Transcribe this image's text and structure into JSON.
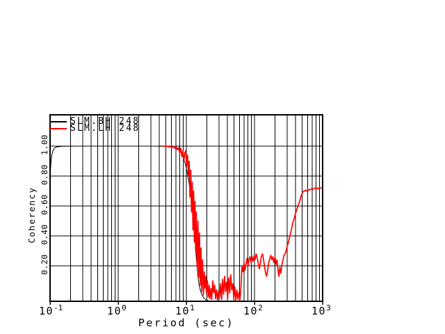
{
  "window": {
    "background": "#ffffff"
  },
  "chart_data": {
    "type": "line",
    "title": "",
    "xlabel": "Period (sec)",
    "ylabel": "Coherency",
    "x_scale": "log",
    "x_range": [
      0.1,
      1000
    ],
    "y_range": [
      0,
      1.0
    ],
    "grid": {
      "color": "#000000",
      "x_minor_divisions": [
        2,
        3,
        4,
        5,
        6,
        7,
        8,
        9
      ],
      "horizontal_at_y_ticks": true
    },
    "legend_position": "top-left-inside",
    "x_ticks": [
      {
        "base": "10",
        "exp": "-1"
      },
      {
        "base": "10",
        "exp": "0"
      },
      {
        "base": "10",
        "exp": "1"
      },
      {
        "base": "10",
        "exp": "2"
      },
      {
        "base": "10",
        "exp": "3"
      }
    ],
    "y_ticks": [
      {
        "value": 1.0,
        "label": "1.00"
      },
      {
        "value": 0.8,
        "label": "0.80"
      },
      {
        "value": 0.6,
        "label": "0.60"
      },
      {
        "value": 0.4,
        "label": "0.40"
      },
      {
        "value": 0.2,
        "label": "0.20"
      }
    ],
    "series": [
      {
        "name": "SLM.BH 248",
        "color": "#000000",
        "line_width": 1,
        "points": [
          [
            0.1,
            0.76
          ],
          [
            0.101,
            0.83
          ],
          [
            0.103,
            0.89
          ],
          [
            0.106,
            0.94
          ],
          [
            0.11,
            0.968
          ],
          [
            0.115,
            0.985
          ],
          [
            0.125,
            0.995
          ],
          [
            0.15,
            0.999
          ],
          [
            0.25,
            1.0
          ],
          [
            0.5,
            1.0
          ],
          [
            1.0,
            1.0
          ],
          [
            2.0,
            1.0
          ],
          [
            3.5,
            1.0
          ],
          [
            4.5,
            0.999
          ],
          [
            5.5,
            0.997
          ],
          [
            6.5,
            0.992
          ],
          [
            7.2,
            0.986
          ],
          [
            7.8,
            0.975
          ],
          [
            8.4,
            0.955
          ],
          [
            9.0,
            0.925
          ],
          [
            9.6,
            0.885
          ],
          [
            10.2,
            0.835
          ],
          [
            10.9,
            0.76
          ],
          [
            11.6,
            0.67
          ],
          [
            12.3,
            0.57
          ],
          [
            13.0,
            0.45
          ],
          [
            13.6,
            0.33
          ],
          [
            14.2,
            0.22
          ],
          [
            14.8,
            0.13
          ],
          [
            15.4,
            0.07
          ],
          [
            16.2,
            0.03
          ],
          [
            17.0,
            0.005
          ],
          [
            18.0,
            -0.015
          ],
          [
            19.5,
            -0.028
          ],
          [
            21.0,
            -0.034
          ],
          [
            24.0,
            -0.037
          ],
          [
            26.0,
            -0.037
          ]
        ]
      },
      {
        "name": "SLM.LH 248",
        "color": "#ff0000",
        "line_width": 1.7,
        "points": [
          [
            4.5,
            0.997
          ],
          [
            4.75,
            1.0
          ],
          [
            5.0,
            0.996
          ],
          [
            5.3,
            1.0
          ],
          [
            5.6,
            0.995
          ],
          [
            5.9,
            0.999
          ],
          [
            6.2,
            0.992
          ],
          [
            6.5,
            0.998
          ],
          [
            6.8,
            0.985
          ],
          [
            7.1,
            0.995
          ],
          [
            7.4,
            0.975
          ],
          [
            7.7,
            0.99
          ],
          [
            8.0,
            0.955
          ],
          [
            8.3,
            0.985
          ],
          [
            8.6,
            0.93
          ],
          [
            8.9,
            0.97
          ],
          [
            9.2,
            0.9
          ],
          [
            9.5,
            0.955
          ],
          [
            9.8,
            0.97
          ],
          [
            10.1,
            0.87
          ],
          [
            10.4,
            0.94
          ],
          [
            10.7,
            0.8
          ],
          [
            11.0,
            0.9
          ],
          [
            11.3,
            0.66
          ],
          [
            11.6,
            0.84
          ],
          [
            11.9,
            0.56
          ],
          [
            12.2,
            0.76
          ],
          [
            12.5,
            0.44
          ],
          [
            12.8,
            0.7
          ],
          [
            13.1,
            0.36
          ],
          [
            13.4,
            0.63
          ],
          [
            13.7,
            0.29
          ],
          [
            14.0,
            0.56
          ],
          [
            14.4,
            0.19
          ],
          [
            14.8,
            0.5
          ],
          [
            15.2,
            0.12
          ],
          [
            15.6,
            0.42
          ],
          [
            16.0,
            0.07
          ],
          [
            16.4,
            0.32
          ],
          [
            16.8,
            0.03
          ],
          [
            17.3,
            0.24
          ],
          [
            17.8,
            0.005
          ],
          [
            18.3,
            0.16
          ],
          [
            18.8,
            0.05
          ],
          [
            19.3,
            0.13
          ],
          [
            19.8,
            0.015
          ],
          [
            20.4,
            0.1
          ],
          [
            21.0,
            -0.01
          ],
          [
            21.6,
            0.07
          ],
          [
            22.2,
            -0.02
          ],
          [
            22.9,
            0.05
          ],
          [
            23.6,
            -0.025
          ],
          [
            24.4,
            0.1
          ],
          [
            25.2,
            0.02
          ],
          [
            26.0,
            0.07
          ],
          [
            26.9,
            -0.02
          ],
          [
            27.8,
            0.04
          ],
          [
            28.7,
            -0.03
          ],
          [
            29.7,
            0.03
          ],
          [
            30.7,
            -0.015
          ],
          [
            31.8,
            0.08
          ],
          [
            32.9,
            -0.025
          ],
          [
            34.0,
            0.11
          ],
          [
            35.2,
            0.01
          ],
          [
            36.4,
            0.13
          ],
          [
            37.7,
            0.03
          ],
          [
            39.0,
            0.09
          ],
          [
            40.4,
            -0.02
          ],
          [
            41.8,
            0.12
          ],
          [
            43.3,
            0.02
          ],
          [
            44.8,
            0.14
          ],
          [
            46.4,
            0.04
          ],
          [
            48.0,
            0.08
          ],
          [
            49.7,
            -0.02
          ],
          [
            51.4,
            0.06
          ],
          [
            53.2,
            -0.03
          ],
          [
            55.1,
            0.04
          ],
          [
            57.0,
            -0.025
          ],
          [
            59.0,
            0.02
          ],
          [
            61.1,
            -0.03
          ],
          [
            63.2,
            0.05
          ],
          [
            65.4,
            0.2
          ],
          [
            67.7,
            0.16
          ],
          [
            70.1,
            0.22
          ],
          [
            72.6,
            0.17
          ],
          [
            75.1,
            0.21
          ],
          [
            77.7,
            0.25
          ],
          [
            80.4,
            0.2
          ],
          [
            83.2,
            0.24
          ],
          [
            86.1,
            0.26
          ],
          [
            89.1,
            0.22
          ],
          [
            92.2,
            0.26
          ],
          [
            95.4,
            0.23
          ],
          [
            98.8,
            0.27
          ],
          [
            102.0,
            0.24
          ],
          [
            106.0,
            0.28
          ],
          [
            110.0,
            0.25
          ],
          [
            114.0,
            0.21
          ],
          [
            118.0,
            0.18
          ],
          [
            122.0,
            0.22
          ],
          [
            126.0,
            0.26
          ],
          [
            131.0,
            0.28
          ],
          [
            136.0,
            0.24
          ],
          [
            141.0,
            0.19
          ],
          [
            146.0,
            0.15
          ],
          [
            151.0,
            0.13
          ],
          [
            156.0,
            0.17
          ],
          [
            162.0,
            0.22
          ],
          [
            168.0,
            0.25
          ],
          [
            174.0,
            0.27
          ],
          [
            180.0,
            0.24
          ],
          [
            186.0,
            0.26
          ],
          [
            193.0,
            0.22
          ],
          [
            200.0,
            0.26
          ],
          [
            207.0,
            0.21
          ],
          [
            214.0,
            0.24
          ],
          [
            221.0,
            0.17
          ],
          [
            228.0,
            0.13
          ],
          [
            236.0,
            0.19
          ],
          [
            244.0,
            0.15
          ],
          [
            253.0,
            0.21
          ],
          [
            262.0,
            0.24
          ],
          [
            271.0,
            0.27
          ],
          [
            281.0,
            0.28
          ],
          [
            291.0,
            0.3
          ],
          [
            301.0,
            0.33
          ],
          [
            312.0,
            0.35
          ],
          [
            323.0,
            0.38
          ],
          [
            335.0,
            0.41
          ],
          [
            347.0,
            0.44
          ],
          [
            359.0,
            0.47
          ],
          [
            372.0,
            0.5
          ],
          [
            385.0,
            0.52
          ],
          [
            399.0,
            0.55
          ],
          [
            413.0,
            0.57
          ],
          [
            428.0,
            0.59
          ],
          [
            443.0,
            0.61
          ],
          [
            460.0,
            0.63
          ],
          [
            478.0,
            0.66
          ],
          [
            497.0,
            0.68
          ],
          [
            517.0,
            0.695
          ],
          [
            538.0,
            0.7
          ],
          [
            560.0,
            0.705
          ],
          [
            583.0,
            0.7
          ],
          [
            607.0,
            0.71
          ],
          [
            632.0,
            0.705
          ],
          [
            658.0,
            0.71
          ],
          [
            685.0,
            0.715
          ],
          [
            713.0,
            0.71
          ],
          [
            742.0,
            0.715
          ],
          [
            772.0,
            0.72
          ],
          [
            803.0,
            0.715
          ],
          [
            836.0,
            0.72
          ],
          [
            870.0,
            0.715
          ],
          [
            905.0,
            0.72
          ],
          [
            942.0,
            0.72
          ],
          [
            980.0,
            0.72
          ]
        ]
      }
    ]
  }
}
